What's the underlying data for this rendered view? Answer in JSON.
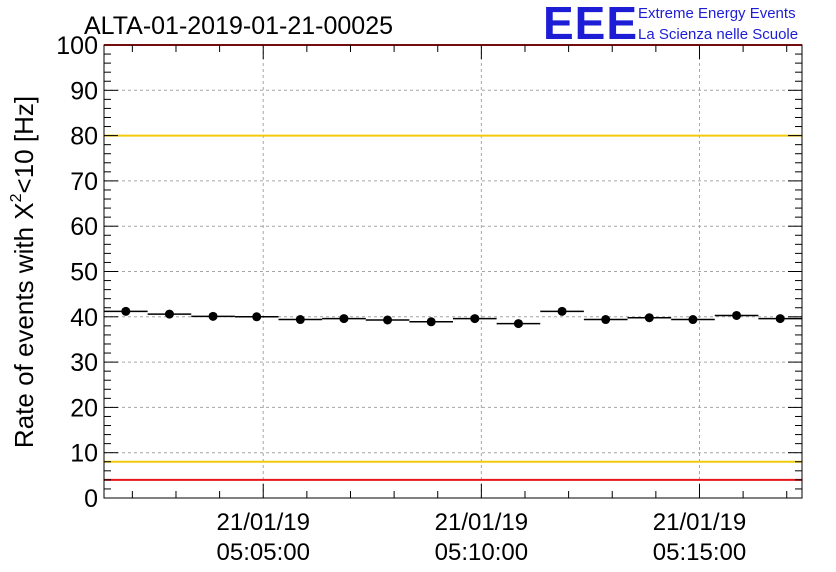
{
  "header": {
    "run_title": "ALTA-01-2019-01-21-00025"
  },
  "logo": {
    "mark": "EEE",
    "line1": "Extreme Energy Events",
    "line2": "La Scienza nelle Scuole",
    "color": "#1d1dd6"
  },
  "chart_data": {
    "type": "scatter",
    "title": "ALTA-01-2019-01-21-00025",
    "ylabel_base": "Rate of events with X",
    "ylabel_sup": "2",
    "ylabel_tail": "<10 [Hz]",
    "ylim": [
      0,
      100
    ],
    "yticks": [
      "0",
      "10",
      "20",
      "30",
      "40",
      "50",
      "60",
      "70",
      "80",
      "90",
      "100"
    ],
    "xlim_minutes": [
      1.35,
      17.35
    ],
    "xticks": [
      {
        "date": "21/01/19",
        "time": "05:05:00"
      },
      {
        "date": "21/01/19",
        "time": "05:10:00"
      },
      {
        "date": "21/01/19",
        "time": "05:15:00"
      }
    ],
    "xtick_minutes": [
      5,
      10,
      15
    ],
    "bin_width_minutes": 1,
    "points": [
      {
        "t": 1.85,
        "rate": 41.2
      },
      {
        "t": 2.85,
        "rate": 40.6
      },
      {
        "t": 3.85,
        "rate": 40.1
      },
      {
        "t": 4.85,
        "rate": 40.0
      },
      {
        "t": 5.85,
        "rate": 39.4
      },
      {
        "t": 6.85,
        "rate": 39.6
      },
      {
        "t": 7.85,
        "rate": 39.3
      },
      {
        "t": 8.85,
        "rate": 38.9
      },
      {
        "t": 9.85,
        "rate": 39.6
      },
      {
        "t": 10.85,
        "rate": 38.5
      },
      {
        "t": 11.85,
        "rate": 41.2
      },
      {
        "t": 12.85,
        "rate": 39.4
      },
      {
        "t": 13.85,
        "rate": 39.8
      },
      {
        "t": 14.85,
        "rate": 39.4
      },
      {
        "t": 15.85,
        "rate": 40.3
      },
      {
        "t": 16.85,
        "rate": 39.6
      }
    ],
    "reference_lines": [
      {
        "value": 100,
        "color": "#e8161a"
      },
      {
        "value": 80,
        "color": "#f2cc0c"
      },
      {
        "value": 8,
        "color": "#f2cc0c"
      },
      {
        "value": 4,
        "color": "#e8161a"
      }
    ],
    "grid": true,
    "marker_color": "#000000"
  }
}
